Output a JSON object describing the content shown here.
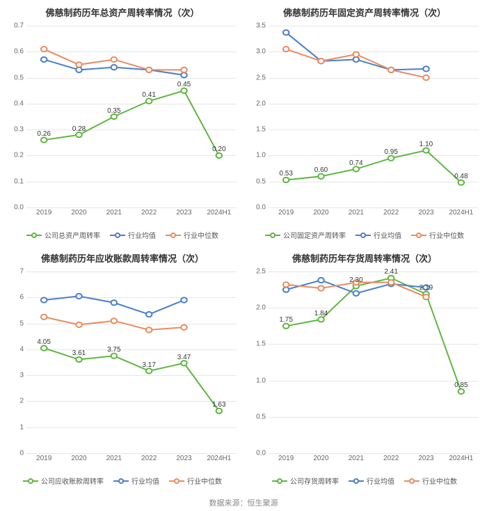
{
  "footer_text": "数据来源：恒生聚源",
  "footer_fontsize": 11,
  "colors": {
    "company": "#5fb641",
    "industry_avg": "#4a7ecc",
    "industry_median": "#e98b5f",
    "grid": "#e6e6e6",
    "background": "#ffffff",
    "text": "#666666",
    "title": "#333333"
  },
  "style": {
    "title_fontsize": 13,
    "axis_fontsize": 10,
    "label_fontsize": 10,
    "legend_fontsize": 10,
    "line_width": 2,
    "marker_radius": 3.5
  },
  "categories": [
    "2019",
    "2020",
    "2021",
    "2022",
    "2023",
    "2024H1"
  ],
  "charts": [
    {
      "id": "total_asset",
      "title": "佛慈制药历年总资产周转率情况（次）",
      "ylim": [
        0,
        0.7
      ],
      "ytick_step": 0.1,
      "ytick_decimals": 1,
      "series": [
        {
          "key": "company",
          "name": "公司总资产周转率",
          "values": [
            0.26,
            0.28,
            0.35,
            0.41,
            0.45,
            0.2
          ],
          "show_labels": true,
          "label_decimals": 2
        },
        {
          "key": "industry_avg",
          "name": "行业均值",
          "values": [
            0.57,
            0.53,
            0.54,
            0.53,
            0.51,
            null
          ],
          "show_labels": false
        },
        {
          "key": "industry_median",
          "name": "行业中位数",
          "values": [
            0.61,
            0.55,
            0.57,
            0.53,
            0.53,
            null
          ],
          "show_labels": false
        }
      ]
    },
    {
      "id": "fixed_asset",
      "title": "佛慈制药历年固定资产周转率情况（次）",
      "ylim": [
        0,
        3.5
      ],
      "ytick_step": 0.5,
      "ytick_decimals": 1,
      "series": [
        {
          "key": "company",
          "name": "公司固定资产周转率",
          "values": [
            0.53,
            0.6,
            0.74,
            0.95,
            1.1,
            0.48
          ],
          "show_labels": true,
          "label_decimals": 2
        },
        {
          "key": "industry_avg",
          "name": "行业均值",
          "values": [
            3.37,
            2.82,
            2.85,
            2.65,
            2.67,
            null
          ],
          "show_labels": false
        },
        {
          "key": "industry_median",
          "name": "行业中位数",
          "values": [
            3.05,
            2.82,
            2.95,
            2.65,
            2.5,
            null
          ],
          "show_labels": false
        }
      ]
    },
    {
      "id": "receivables",
      "title": "佛慈制药历年应收账款周转率情况（次）",
      "ylim": [
        0,
        7
      ],
      "ytick_step": 1,
      "ytick_decimals": 0,
      "series": [
        {
          "key": "company",
          "name": "公司应收账款周转率",
          "values": [
            4.05,
            3.61,
            3.75,
            3.17,
            3.47,
            1.63
          ],
          "show_labels": true,
          "label_decimals": 2
        },
        {
          "key": "industry_avg",
          "name": "行业均值",
          "values": [
            5.9,
            6.05,
            5.8,
            5.35,
            5.9,
            null
          ],
          "show_labels": false
        },
        {
          "key": "industry_median",
          "name": "行业中位数",
          "values": [
            5.25,
            4.95,
            5.1,
            4.75,
            4.85,
            null
          ],
          "show_labels": false
        }
      ]
    },
    {
      "id": "inventory",
      "title": "佛慈制药历年存货周转率情况（次）",
      "ylim": [
        0,
        2.5
      ],
      "ytick_step": 0.5,
      "ytick_decimals": 1,
      "series": [
        {
          "key": "company",
          "name": "公司存货周转率",
          "values": [
            1.75,
            1.84,
            2.3,
            2.41,
            2.19,
            0.85
          ],
          "show_labels": true,
          "label_decimals": 2
        },
        {
          "key": "industry_avg",
          "name": "行业均值",
          "values": [
            2.25,
            2.38,
            2.2,
            2.33,
            2.28,
            null
          ],
          "show_labels": false
        },
        {
          "key": "industry_median",
          "name": "行业中位数",
          "values": [
            2.32,
            2.27,
            2.35,
            2.35,
            2.15,
            null
          ],
          "show_labels": false
        }
      ]
    }
  ]
}
